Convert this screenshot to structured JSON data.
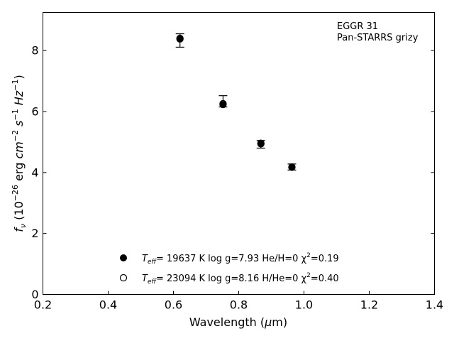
{
  "chart_data": {
    "type": "scatter",
    "xlabel": "Wavelength (μm)",
    "ylabel": "f_ν (10^-26 erg cm^-2 s^-1 Hz^-1)",
    "xlim": [
      0.2,
      1.4
    ],
    "ylim": [
      0,
      9.25
    ],
    "xticks": [
      0.2,
      0.4,
      0.6,
      0.8,
      1.0,
      1.2,
      1.4
    ],
    "xtick_labels": [
      "0.2",
      "0.4",
      "0.6",
      "0.8",
      "1.0",
      "1.2",
      "1.4"
    ],
    "yticks": [
      0,
      2,
      4,
      6,
      8
    ],
    "ytick_labels": [
      "0",
      "2",
      "4",
      "6",
      "8"
    ],
    "grid": false,
    "annotations": [
      "EGGR 31",
      "Pan-STARRS grizy"
    ],
    "legend_placement": "lower-center",
    "observed": {
      "x": [
        0.62,
        0.752,
        0.868,
        0.963
      ],
      "y": [
        8.33,
        6.3,
        4.93,
        4.18
      ],
      "yerr_low": [
        0.22,
        0.15,
        0.13,
        0.1
      ],
      "yerr_high": [
        0.22,
        0.22,
        0.12,
        0.1
      ]
    },
    "series": [
      {
        "marker": "filled-circle",
        "legend_label": {
          "main": "T",
          "sub": "eff",
          "rest": "= 19637 K  log g=7.93  He/H=0  χ",
          "sup": "2",
          "tail": "=0.19"
        },
        "x": [
          0.62,
          0.752,
          0.868,
          0.963
        ],
        "y": [
          8.4,
          6.23,
          4.96,
          4.17
        ]
      },
      {
        "marker": "open-circle",
        "legend_label": {
          "main": "T",
          "sub": "eff",
          "rest": "= 23094 K  log g=8.16  H/He=0  χ",
          "sup": "2",
          "tail": "=0.40"
        },
        "x": [
          0.62,
          0.752,
          0.868,
          0.963
        ],
        "y": [
          8.38,
          6.26,
          4.94,
          4.18
        ]
      }
    ]
  }
}
